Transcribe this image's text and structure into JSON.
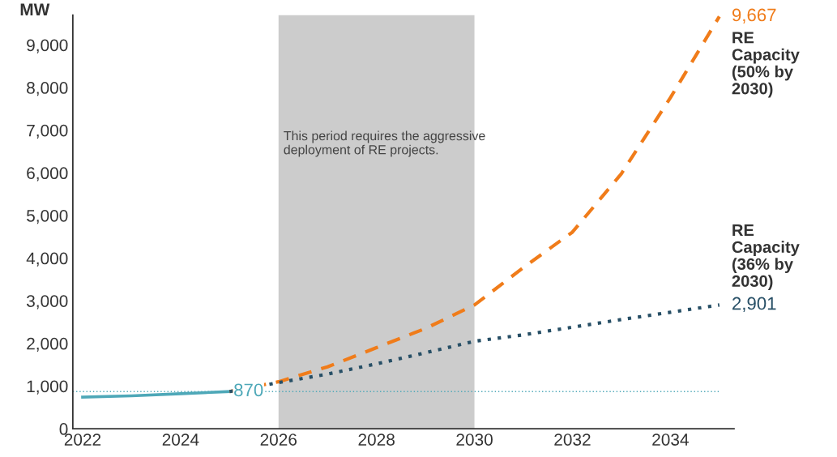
{
  "chart_data": {
    "type": "line",
    "ylabel": "MW",
    "x": [
      2022,
      2023,
      2024,
      2025,
      2026,
      2027,
      2028,
      2029,
      2030,
      2031,
      2032,
      2033,
      2034,
      2035
    ],
    "series": [
      {
        "color": "#4ea8b8",
        "line_style": "solid",
        "values": [
          740,
          770,
          820,
          870,
          null,
          null,
          null,
          null,
          null,
          null,
          null,
          null,
          null,
          null
        ],
        "value_labels": [
          null,
          null,
          null,
          "870",
          null,
          null,
          null,
          null,
          null,
          null,
          null,
          null,
          null,
          null
        ]
      },
      {
        "name": "RE Capacity (50% by 2030)",
        "color": "#f07c1a",
        "line_style": "dashed",
        "values": [
          null,
          null,
          null,
          870,
          1100,
          1450,
          1900,
          2350,
          2900,
          3780,
          4610,
          5980,
          7760,
          9667
        ],
        "value_labels": [
          null,
          null,
          null,
          null,
          null,
          null,
          null,
          null,
          null,
          null,
          null,
          null,
          null,
          "9,667"
        ]
      },
      {
        "name": "RE Capacity (36% by 2030)",
        "color": "#274f66",
        "line_style": "dotted",
        "values": [
          null,
          null,
          null,
          870,
          1080,
          1280,
          1520,
          1780,
          2050,
          2200,
          2380,
          2560,
          2730,
          2901
        ],
        "value_labels": [
          null,
          null,
          null,
          null,
          null,
          null,
          null,
          null,
          null,
          null,
          null,
          null,
          null,
          "2,901"
        ]
      }
    ],
    "ref_lines": [
      {
        "axis": "y",
        "value": 870,
        "color": "#4ea8b8",
        "line_style": "dotted"
      }
    ],
    "bands": [
      {
        "axis": "x",
        "from": 2026,
        "to": 2030,
        "color": "#cccccc",
        "label": "This period requires the aggressive deployment of RE projects."
      }
    ],
    "xlim": [
      2021.8,
      2035.3
    ],
    "ylim": [
      0,
      9700
    ],
    "xticks": [
      2022,
      2024,
      2026,
      2028,
      2030,
      2032,
      2034
    ],
    "yticks": [
      0,
      {
        "value": 1000,
        "label": "1,000"
      },
      {
        "value": 2000,
        "label": "2,000"
      },
      {
        "value": 3000,
        "label": "3,000"
      },
      {
        "value": 4000,
        "label": "4,000"
      },
      {
        "value": 5000,
        "label": "5,000"
      },
      {
        "value": 6000,
        "label": "6,000"
      },
      {
        "value": 7000,
        "label": "7,000"
      },
      {
        "value": 8000,
        "label": "8,000"
      },
      {
        "value": 9000,
        "label": "9,000"
      }
    ],
    "grid": false,
    "legend": false,
    "marker": "none"
  }
}
